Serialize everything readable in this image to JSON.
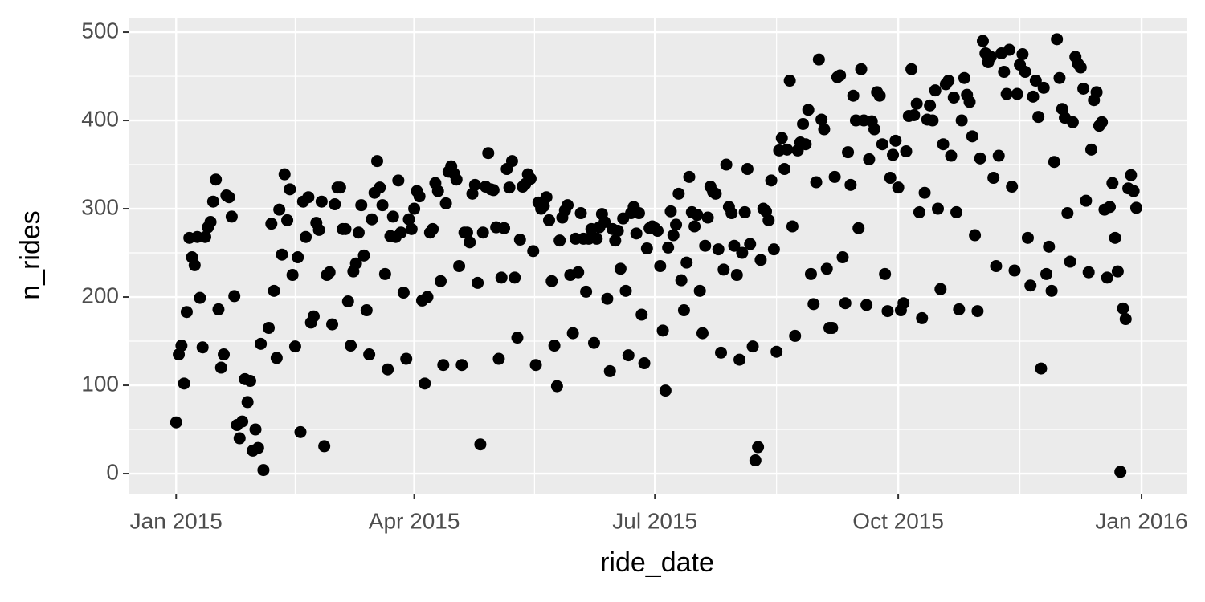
{
  "chart_data": {
    "type": "scatter",
    "x_label": "ride_date",
    "y_label": "n_rides",
    "color": "#000000",
    "panel_color": "#ebebeb",
    "grid": true,
    "xlim": [
      -18,
      382
    ],
    "xticks": [
      {
        "value": 0,
        "label": "Jan 2015"
      },
      {
        "value": 90,
        "label": "Apr 2015"
      },
      {
        "value": 181,
        "label": "Jul 2015"
      },
      {
        "value": 273,
        "label": "Oct 2015"
      },
      {
        "value": 365,
        "label": "Jan 2016"
      }
    ],
    "ylim": [
      -22.7,
      516.4
    ],
    "yticks": [
      0,
      100,
      200,
      300,
      400,
      500
    ],
    "x": [
      0,
      1,
      2,
      3,
      4,
      5,
      6,
      7,
      8,
      9,
      10,
      11,
      12,
      13,
      14,
      15,
      16,
      17,
      18,
      19,
      20,
      21,
      22,
      23,
      24,
      25,
      26,
      27,
      28,
      29,
      30,
      31,
      32,
      33,
      35,
      36,
      37,
      38,
      39,
      40,
      41,
      42,
      43,
      44,
      45,
      46,
      47,
      48,
      49,
      50,
      51,
      52,
      53,
      54,
      55,
      56,
      57,
      58,
      59,
      60,
      61,
      62,
      63,
      64,
      65,
      66,
      67,
      68,
      69,
      70,
      71,
      72,
      73,
      74,
      75,
      76,
      77,
      78,
      79,
      80,
      81,
      82,
      83,
      84,
      85,
      86,
      87,
      88,
      89,
      90,
      91,
      92,
      93,
      94,
      95,
      96,
      97,
      98,
      99,
      100,
      101,
      102,
      103,
      104,
      105,
      106,
      107,
      108,
      109,
      110,
      111,
      112,
      113,
      114,
      115,
      116,
      117,
      118,
      119,
      120,
      121,
      122,
      123,
      124,
      125,
      126,
      127,
      128,
      129,
      130,
      131,
      132,
      133,
      134,
      135,
      136,
      137,
      138,
      139,
      140,
      141,
      142,
      143,
      144,
      145,
      146,
      147,
      148,
      149,
      150,
      151,
      152,
      153,
      154,
      155,
      156,
      157,
      158,
      159,
      160,
      161,
      162,
      163,
      164,
      165,
      166,
      167,
      168,
      169,
      170,
      171,
      172,
      173,
      174,
      175,
      176,
      177,
      178,
      179,
      180,
      181,
      182,
      183,
      184,
      185,
      186,
      187,
      188,
      189,
      190,
      191,
      192,
      193,
      194,
      195,
      196,
      197,
      198,
      199,
      200,
      201,
      202,
      203,
      204,
      205,
      206,
      207,
      208,
      209,
      210,
      211,
      212,
      213,
      214,
      215,
      216,
      217,
      218,
      219,
      220,
      221,
      222,
      223,
      224,
      225,
      226,
      227,
      228,
      229,
      230,
      231,
      232,
      233,
      234,
      235,
      236,
      237,
      238,
      239,
      240,
      241,
      242,
      243,
      244,
      245,
      246,
      247,
      248,
      249,
      250,
      251,
      252,
      253,
      254,
      255,
      256,
      257,
      258,
      259,
      260,
      261,
      262,
      263,
      264,
      265,
      266,
      267,
      268,
      269,
      270,
      271,
      272,
      273,
      274,
      275,
      276,
      277,
      278,
      279,
      280,
      281,
      282,
      283,
      284,
      285,
      286,
      287,
      288,
      289,
      290,
      291,
      292,
      293,
      294,
      295,
      296,
      297,
      298,
      299,
      300,
      301,
      302,
      303,
      304,
      305,
      306,
      307,
      308,
      309,
      310,
      311,
      312,
      313,
      314,
      315,
      316,
      317,
      318,
      319,
      320,
      321,
      322,
      323,
      324,
      325,
      326,
      327,
      328,
      329,
      330,
      331,
      332,
      333,
      334,
      335,
      336,
      337,
      338,
      339,
      340,
      341,
      342,
      343,
      344,
      345,
      346,
      347,
      348,
      349,
      350,
      351,
      352,
      353,
      354,
      355,
      356,
      357,
      358,
      359,
      360,
      361,
      362,
      363
    ],
    "values": [
      58,
      135,
      145,
      102,
      183,
      267,
      245,
      236,
      268,
      199,
      143,
      268,
      279,
      285,
      308,
      333,
      186,
      120,
      135,
      315,
      313,
      291,
      201,
      55,
      40,
      59,
      107,
      81,
      105,
      26,
      50,
      29,
      147,
      4,
      165,
      283,
      207,
      131,
      299,
      248,
      339,
      287,
      322,
      225,
      144,
      245,
      47,
      308,
      268,
      313,
      171,
      178,
      284,
      276,
      308,
      31,
      225,
      228,
      169,
      305,
      324,
      324,
      277,
      277,
      195,
      145,
      229,
      238,
      273,
      304,
      247,
      185,
      135,
      288,
      318,
      354,
      324,
      304,
      226,
      118,
      269,
      291,
      268,
      332,
      273,
      205,
      130,
      288,
      277,
      300,
      320,
      314,
      196,
      102,
      200,
      273,
      277,
      329,
      320,
      218,
      123,
      306,
      342,
      348,
      340,
      333,
      235,
      123,
      273,
      273,
      262,
      317,
      327,
      216,
      33,
      273,
      325,
      363,
      322,
      321,
      279,
      130,
      222,
      278,
      345,
      324,
      354,
      222,
      154,
      265,
      325,
      328,
      339,
      334,
      252,
      123,
      307,
      300,
      303,
      313,
      287,
      218,
      145,
      99,
      264,
      290,
      298,
      304,
      225,
      159,
      266,
      228,
      295,
      266,
      206,
      266,
      277,
      148,
      266,
      279,
      294,
      285,
      198,
      116,
      277,
      264,
      275,
      232,
      289,
      207,
      134,
      295,
      302,
      272,
      295,
      180,
      125,
      255,
      278,
      280,
      278,
      275,
      235,
      162,
      94,
      256,
      297,
      270,
      282,
      317,
      219,
      185,
      239,
      336,
      296,
      280,
      293,
      207,
      159,
      258,
      290,
      325,
      319,
      317,
      254,
      137,
      231,
      350,
      302,
      295,
      258,
      225,
      129,
      250,
      296,
      345,
      260,
      144,
      15,
      30,
      242,
      300,
      297,
      287,
      332,
      254,
      138,
      366,
      380,
      345,
      367,
      445,
      280,
      156,
      366,
      375,
      396,
      373,
      412,
      226,
      192,
      330,
      469,
      401,
      390,
      232,
      165,
      165,
      336,
      449,
      451,
      245,
      193,
      364,
      327,
      428,
      400,
      278,
      458,
      400,
      191,
      356,
      399,
      390,
      432,
      428,
      373,
      226,
      184,
      335,
      361,
      377,
      324,
      185,
      193,
      365,
      405,
      458,
      406,
      419,
      296,
      176,
      318,
      401,
      417,
      400,
      434,
      300,
      209,
      373,
      441,
      445,
      360,
      426,
      296,
      186,
      400,
      448,
      429,
      421,
      382,
      270,
      184,
      357,
      490,
      476,
      466,
      472,
      335,
      235,
      360,
      476,
      455,
      430,
      480,
      325,
      230,
      430,
      463,
      475,
      455,
      267,
      213,
      427,
      445,
      404,
      119,
      437,
      226,
      257,
      207,
      353,
      492,
      448,
      413,
      403,
      295,
      240,
      398,
      472,
      464,
      460,
      436,
      309,
      228,
      367,
      423,
      432,
      394,
      398,
      299,
      222,
      302,
      329,
      267,
      229,
      2,
      187,
      175,
      323,
      338,
      320,
      301
    ]
  }
}
